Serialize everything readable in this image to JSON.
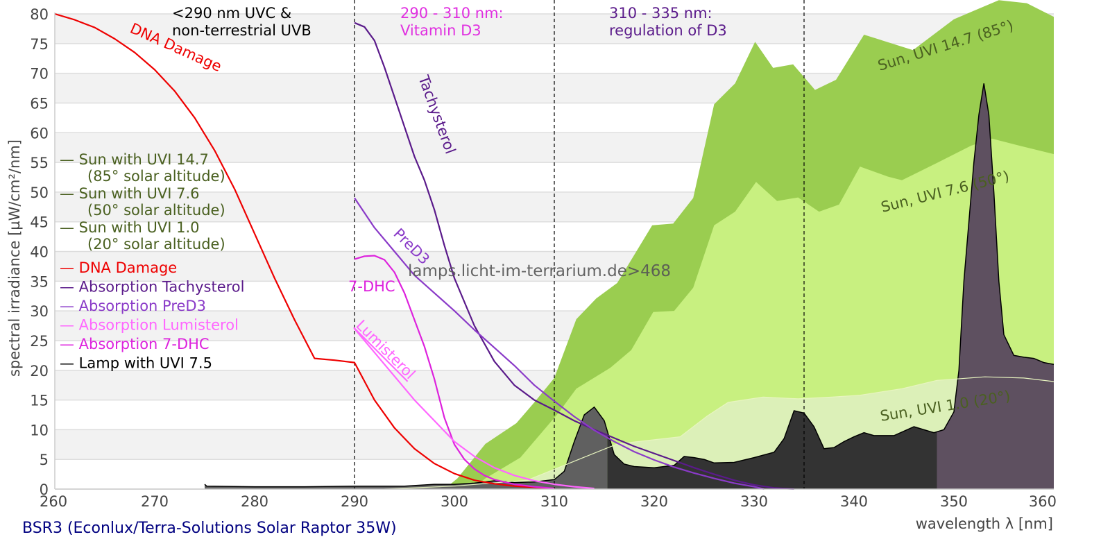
{
  "chart_data": {
    "type": "area",
    "title": "BSR3 (Econlux/Terra-Solutions Solar Raptor 35W)",
    "watermark": "lamps.licht-im-terrarium.de>468",
    "xlabel": "wavelength λ [nm]",
    "ylabel": "spectral irradiance [µW/cm²/nm]",
    "xlim": [
      260,
      360
    ],
    "ylim": [
      0,
      80
    ],
    "xticks": [
      260,
      270,
      280,
      290,
      300,
      310,
      320,
      330,
      340,
      350,
      360
    ],
    "yticks": [
      0,
      5,
      10,
      15,
      20,
      25,
      30,
      35,
      40,
      45,
      50,
      55,
      60,
      65,
      70,
      75,
      80
    ],
    "grid": "horizontal alternating bands",
    "region_lines": [
      290,
      310,
      335
    ],
    "region_labels": [
      {
        "text": [
          "<290 nm UVC &",
          "non-terrestrial UVB"
        ],
        "color": "#000000"
      },
      {
        "text": [
          "290 - 310 nm:",
          "Vitamin D3"
        ],
        "color": "#e030e0"
      },
      {
        "text": [
          "310 - 335 nm:",
          "regulation of D3"
        ],
        "color": "#5a1a8a"
      }
    ],
    "legend": {
      "placement": "left",
      "entries": [
        {
          "label": "— Sun with UVI 14.7",
          "sub": "(85° solar altitude)",
          "color": "#4a6020"
        },
        {
          "label": "— Sun with UVI 7.6",
          "sub": "(50° solar altitude)",
          "color": "#4a6020"
        },
        {
          "label": "— Sun with UVI 1.0",
          "sub": "(20° solar altitude)",
          "color": "#4a6020"
        },
        {
          "label": "— DNA Damage",
          "sub": "",
          "color": "#ee0000"
        },
        {
          "label": "— Absorption Tachysterol",
          "sub": "",
          "color": "#5a1a8a"
        },
        {
          "label": "— Absorption PreD3",
          "sub": "",
          "color": "#8a3ac8"
        },
        {
          "label": "— Absorption Lumisterol",
          "sub": "",
          "color": "#ff66ff"
        },
        {
          "label": "— Absorption 7-DHC",
          "sub": "",
          "color": "#dd22dd"
        },
        {
          "label": "— Lamp with UVI 7.5",
          "sub": "",
          "color": "#000000"
        }
      ]
    },
    "curve_labels": {
      "dna": "DNA Damage",
      "tachysterol": "Tachysterol",
      "pred3": "PreD3",
      "dhc": "7-DHC",
      "lumisterol": "Lumisterol",
      "sun147": "Sun, UVI 14.7 (85°)",
      "sun76": "Sun, UVI 7.6 (50°)",
      "sun10": "Sun, UVI 1.0 (20°)"
    },
    "series": [
      {
        "name": "Sun with UVI 14.7",
        "kind": "area",
        "color": "#9acd50",
        "x": [
          299,
          300.3,
          303.1,
          306.2,
          308,
          310,
          312.2,
          314.2,
          316.3,
          319.8,
          321.9,
          323.9,
          326,
          328.1,
          330.1,
          331.9,
          333.9,
          336.1,
          338.2,
          341,
          345.9,
          350,
          354.5,
          357.3,
          360
        ],
        "y": [
          0,
          1.8,
          7.6,
          11.1,
          14.6,
          18.7,
          28.6,
          32.1,
          34.7,
          44.4,
          44.7,
          49,
          64.8,
          68.3,
          75.3,
          70.9,
          71.5,
          67.2,
          68.9,
          76.5,
          73.9,
          79.1,
          82.3,
          81.8,
          79.5
        ]
      },
      {
        "name": "Sun with UVI 7.6",
        "kind": "area",
        "color": "#c8f080",
        "x": [
          301.7,
          303.1,
          306.6,
          310.4,
          312.2,
          315.6,
          317.7,
          319.9,
          322,
          323.9,
          326,
          328.1,
          330.2,
          332.3,
          334.4,
          336.5,
          338.5,
          340.6,
          343.4,
          344.8,
          348.3,
          351.7,
          353.8,
          356.6,
          360
        ],
        "y": [
          0,
          1.8,
          5.3,
          12.8,
          16.9,
          20.4,
          23.4,
          29.8,
          30,
          33.9,
          44.4,
          46.7,
          51.7,
          48.5,
          49.1,
          46.7,
          47.9,
          54.3,
          52.6,
          52,
          54.9,
          57.8,
          59,
          57.8,
          56.4
        ]
      },
      {
        "name": "Sun with UVI 1.0",
        "kind": "area",
        "color": "#dcf0b8",
        "x": [
          293,
          300,
          307.3,
          312.9,
          316.3,
          322.6,
          325.3,
          327.4,
          330.9,
          334.4,
          337.8,
          340.6,
          344.8,
          348.3,
          353.1,
          357,
          360
        ],
        "y": [
          0,
          0.5,
          1.5,
          5.3,
          7.6,
          8.8,
          12.3,
          14.6,
          15.5,
          15.2,
          15.5,
          15.8,
          16.9,
          18.3,
          18.9,
          18.7,
          18.1
        ]
      },
      {
        "name": "Lamp with UVI 7.5",
        "kind": "area",
        "color": "#333333",
        "x": [
          275,
          275.2,
          280,
          285,
          290,
          295,
          298,
          300,
          302,
          304,
          306,
          308,
          310,
          311,
          312,
          313,
          314,
          315,
          316,
          317,
          318,
          320,
          322,
          323,
          324,
          325,
          326,
          328,
          330,
          332,
          333,
          334,
          335,
          336,
          337,
          338,
          339,
          340,
          341,
          342,
          344,
          346,
          348,
          349,
          350,
          350.5,
          351,
          352,
          352.5,
          353,
          353.5,
          354,
          354.5,
          355,
          356,
          357,
          358,
          359,
          360
        ],
        "y": [
          0.8,
          0.5,
          0.4,
          0.4,
          0.5,
          0.5,
          0.8,
          0.8,
          1.0,
          1.4,
          1.1,
          1.2,
          1.6,
          3.0,
          8.0,
          12.5,
          13.8,
          11.5,
          5.8,
          4.2,
          3.8,
          3.6,
          4.0,
          5.5,
          5.3,
          5.0,
          4.4,
          4.5,
          5.3,
          6.2,
          8.5,
          13.2,
          12.8,
          10.5,
          6.8,
          7.0,
          8.0,
          8.8,
          9.5,
          9.0,
          9.0,
          10.5,
          9.5,
          10.0,
          13.0,
          20.0,
          35.0,
          55.0,
          63.0,
          68.3,
          63.0,
          50.0,
          35.0,
          26.0,
          22.5,
          22.2,
          22.0,
          21.3,
          21.0
        ]
      },
      {
        "name": "DNA Damage",
        "kind": "line",
        "color": "#ee0000",
        "x": [
          260,
          262,
          264,
          266,
          268,
          270,
          272,
          274,
          276,
          278,
          280,
          282,
          284,
          286,
          288,
          290,
          292,
          294,
          296,
          298,
          300,
          302,
          304,
          306,
          308,
          310
        ],
        "y": [
          80,
          79,
          77.7,
          75.8,
          73.5,
          70.6,
          67,
          62.5,
          57,
          50.5,
          43,
          35.5,
          28.5,
          22,
          21.7,
          21.3,
          15,
          10.3,
          6.8,
          4.3,
          2.6,
          1.5,
          0.9,
          0.5,
          0.3,
          0.1
        ]
      },
      {
        "name": "Absorption Tachysterol",
        "kind": "line",
        "color": "#5a1a8a",
        "x": [
          290,
          291,
          292,
          293,
          294,
          295,
          296,
          297,
          298,
          299,
          300,
          302,
          304,
          306,
          308,
          310,
          312,
          314,
          316,
          318,
          320,
          322,
          324,
          326,
          328,
          330,
          332,
          334
        ],
        "y": [
          78.5,
          77.8,
          75.5,
          71,
          66,
          61,
          56,
          52,
          47,
          41,
          35.5,
          27.5,
          21.5,
          17.5,
          15,
          13.3,
          11.5,
          10,
          8.6,
          7.2,
          6,
          4.8,
          3.6,
          2.5,
          1.5,
          0.7,
          0.2,
          0
        ]
      },
      {
        "name": "Absorption PreD3",
        "kind": "line",
        "color": "#8a3ac8",
        "x": [
          290,
          292,
          294,
          296,
          298,
          300,
          302,
          304,
          306,
          308,
          310,
          312,
          314,
          316,
          318,
          320,
          322,
          324,
          326,
          328,
          330,
          331
        ],
        "y": [
          49,
          44,
          40,
          36,
          33,
          30,
          26.8,
          23.8,
          20.8,
          17.5,
          14.8,
          12.2,
          9.9,
          8,
          6.3,
          4.9,
          3.7,
          2.7,
          1.8,
          1,
          0.4,
          0
        ]
      },
      {
        "name": "Absorption 7-DHC",
        "kind": "line",
        "color": "#dd22dd",
        "x": [
          290,
          291,
          292,
          293,
          294,
          295,
          296,
          297,
          298,
          299,
          300,
          301,
          302,
          303,
          304,
          306,
          308,
          310
        ],
        "y": [
          38.7,
          39.2,
          39.3,
          38.6,
          36.5,
          33,
          28.5,
          24,
          18.5,
          12,
          7.5,
          5,
          3.4,
          2.3,
          1.6,
          0.8,
          0.4,
          0.1
        ]
      },
      {
        "name": "Absorption Lumisterol",
        "kind": "line",
        "color": "#ff66ff",
        "x": [
          290,
          292,
          294,
          296,
          298,
          300,
          302,
          304,
          306,
          308,
          310,
          312,
          314
        ],
        "y": [
          27,
          23,
          19,
          15,
          11.5,
          8,
          5.5,
          3.6,
          2.3,
          1.4,
          0.8,
          0.4,
          0.1
        ]
      }
    ]
  }
}
